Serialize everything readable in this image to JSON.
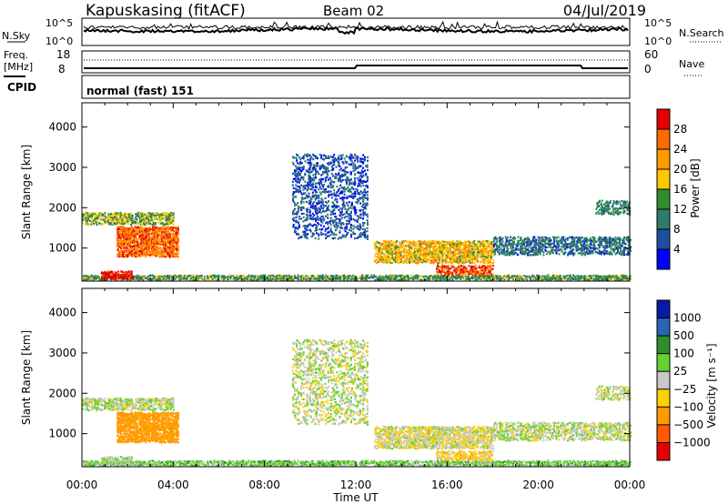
{
  "header": {
    "station": "Kapuskasing (fitACF)",
    "beam": "Beam 02",
    "date": "04/Jul/2019"
  },
  "noise_panel": {
    "left_label": "N.Sky",
    "right_label": "N.Search",
    "left_ticks": [
      "10^5",
      "10^0"
    ],
    "right_ticks": [
      "10^5",
      "10^0"
    ]
  },
  "freq_panel": {
    "left_label_1": "Freq.",
    "left_label_2": "[MHz]",
    "right_label": "Nave",
    "left_ticks": [
      "18",
      "8"
    ],
    "right_ticks": [
      "60",
      "0"
    ]
  },
  "cpid_panel": {
    "left_label": "CPID",
    "text": "normal (fast) 151"
  },
  "power_panel": {
    "ylabel": "Slant Range [km]",
    "yticks": [
      "4000",
      "3000",
      "2000",
      "1000"
    ],
    "colorbar_label": "Power [dB]",
    "colorbar_ticks": [
      "28",
      "24",
      "20",
      "16",
      "12",
      "8",
      "4"
    ],
    "colorbar_colors": [
      "#e30000",
      "#ff6a00",
      "#ff9b00",
      "#ffc800",
      "#2f8f2f",
      "#2e7d6b",
      "#1c4fa0",
      "#0000ff"
    ]
  },
  "velocity_panel": {
    "ylabel": "Slant Range [km]",
    "yticks": [
      "4000",
      "3000",
      "2000",
      "1000"
    ],
    "colorbar_label": "Velocity [m s⁻¹]",
    "colorbar_ticks": [
      "1000",
      "500",
      "100",
      "25",
      "−25",
      "−100",
      "−500",
      "−1000"
    ],
    "colorbar_colors": [
      "#0a1aa8",
      "#2a64b4",
      "#2f8f2f",
      "#66d033",
      "#c8c8c8",
      "#ffd000",
      "#ff9b00",
      "#ff5a00",
      "#e30000"
    ]
  },
  "xaxis": {
    "label": "Time UT",
    "ticks": [
      "00:00",
      "04:00",
      "08:00",
      "12:00",
      "16:00",
      "20:00",
      "00:00"
    ]
  },
  "chart_data": {
    "type": "heatmap",
    "title": "Kapuskasing (fitACF) Beam 02 04/Jul/2019",
    "xlabel": "Time UT",
    "ylabel": "Slant Range [km]",
    "x_range_hours": [
      0,
      24
    ],
    "y_range_km": [
      180,
      4600
    ],
    "power_scale_db": [
      0,
      30
    ],
    "velocity_scale_ms": [
      -1000,
      1000
    ],
    "scatter_regions": [
      {
        "t_start": 0.0,
        "t_end": 24.0,
        "r_min": 180,
        "r_max": 300,
        "power_db": 12,
        "velocity_ms": 60,
        "density": 0.6
      },
      {
        "t_start": 0.0,
        "t_end": 4.0,
        "r_min": 1550,
        "r_max": 1850,
        "power_db": 14,
        "velocity_ms": 10,
        "density": 0.5
      },
      {
        "t_start": 1.5,
        "t_end": 4.2,
        "r_min": 750,
        "r_max": 1500,
        "power_db": 24,
        "velocity_ms": -250,
        "density": 0.7
      },
      {
        "t_start": 0.8,
        "t_end": 2.2,
        "r_min": 200,
        "r_max": 400,
        "power_db": 30,
        "velocity_ms": 30,
        "density": 0.8
      },
      {
        "t_start": 9.2,
        "t_end": 12.5,
        "r_min": 1200,
        "r_max": 3300,
        "power_db": 6,
        "velocity_ms": 5,
        "density": 0.25
      },
      {
        "t_start": 12.8,
        "t_end": 18.0,
        "r_min": 600,
        "r_max": 1150,
        "power_db": 18,
        "velocity_ms": -15,
        "density": 0.6
      },
      {
        "t_start": 15.5,
        "t_end": 18.0,
        "r_min": 300,
        "r_max": 550,
        "power_db": 26,
        "velocity_ms": -60,
        "density": 0.5
      },
      {
        "t_start": 18.0,
        "t_end": 24.0,
        "r_min": 800,
        "r_max": 1250,
        "power_db": 8,
        "velocity_ms": 10,
        "density": 0.45
      },
      {
        "t_start": 22.5,
        "t_end": 24.0,
        "r_min": 1800,
        "r_max": 2150,
        "power_db": 10,
        "velocity_ms": 0,
        "density": 0.4
      }
    ]
  }
}
